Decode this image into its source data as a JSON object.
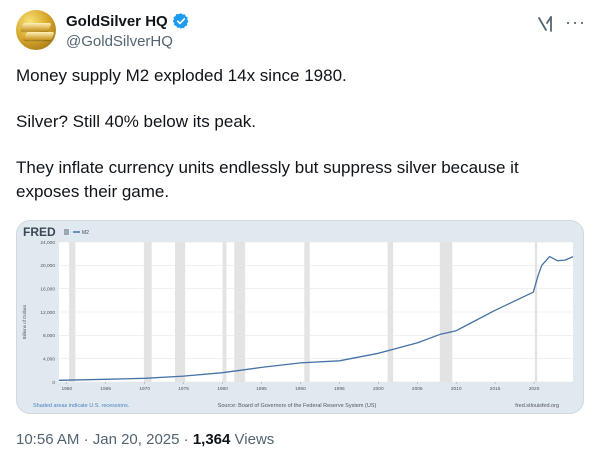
{
  "header": {
    "display_name": "GoldSilver HQ",
    "handle": "@GoldSilverHQ",
    "verified_color": "#1d9bf0",
    "icons": [
      "verified-badge-icon",
      "grok-icon",
      "more-icon"
    ]
  },
  "tweet": {
    "lines": [
      "Money supply M2 exploded 14x since 1980.",
      "Silver? Still 40% below its peak.",
      "They inflate currency units endlessly but suppress silver because it exposes their game."
    ]
  },
  "footer": {
    "time": "10:56 AM",
    "separator": "·",
    "date": "Jan 20, 2025",
    "views_count": "1,364",
    "views_label": "Views"
  },
  "chart_data": {
    "type": "line",
    "brand": "FRED",
    "legend": "M2",
    "ylabel": "Billions of Dollars",
    "ylim": [
      0,
      24000
    ],
    "xlim": [
      1959,
      2025
    ],
    "y_ticks": [
      "0",
      "4,000",
      "8,000",
      "12,000",
      "16,000",
      "20,000",
      "24,000"
    ],
    "x_ticks": [
      "1960",
      "1965",
      "1970",
      "1975",
      "1980",
      "1985",
      "1990",
      "1995",
      "2000",
      "2005",
      "2010",
      "2015",
      "2020"
    ],
    "series": [
      {
        "name": "M2",
        "x": [
          1959,
          1965,
          1970,
          1975,
          1980,
          1985,
          1990,
          1995,
          2000,
          2005,
          2008,
          2010,
          2012,
          2015,
          2018,
          2019.9,
          2020.5,
          2021,
          2022,
          2023,
          2024,
          2025
        ],
        "y": [
          290,
          460,
          630,
          1020,
          1600,
          2500,
          3280,
          3640,
          4920,
          6700,
          8200,
          8800,
          10200,
          12300,
          14200,
          15400,
          18200,
          20000,
          21500,
          20800,
          20900,
          21500
        ]
      }
    ],
    "recessions": [
      [
        1960.3,
        1961.1
      ],
      [
        1969.9,
        1970.9
      ],
      [
        1973.9,
        1975.2
      ],
      [
        1980.0,
        1980.5
      ],
      [
        1981.5,
        1982.9
      ],
      [
        1990.5,
        1991.2
      ],
      [
        2001.2,
        2001.9
      ],
      [
        2007.9,
        2009.5
      ],
      [
        2020.1,
        2020.4
      ]
    ],
    "footnote_left": "Shaded areas indicate U.S. recessions.",
    "source": "Source: Board of Governors of the Federal Reserve System (US)",
    "site": "fred.stlouisfed.org",
    "colors": {
      "line": "#4572a7",
      "recession": "#e3e3e3",
      "background": "#e1e9f0",
      "brand": "#3c4754",
      "link": "#4a7fc1"
    }
  }
}
